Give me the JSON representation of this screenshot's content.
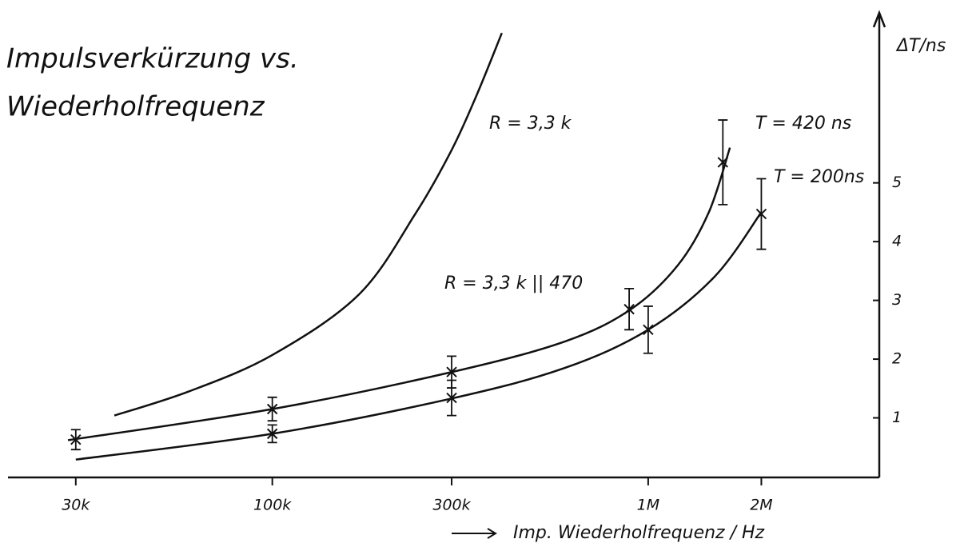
{
  "chart_data": {
    "type": "line",
    "title": [
      "Impulsverkürzung vs.",
      "Wiederholfrequenz"
    ],
    "x_label": "Imp. Wiederholfrequenz / Hz",
    "y_label": "ΔT/ns",
    "xscale": "log",
    "color": "#111",
    "xlim": [
      20000,
      4000000
    ],
    "ylim": [
      0,
      7.5
    ],
    "xticks": [
      {
        "value": 30000,
        "label": "30k"
      },
      {
        "value": 100000,
        "label": "100k"
      },
      {
        "value": 300000,
        "label": "300k"
      },
      {
        "value": 1000000,
        "label": "1M"
      },
      {
        "value": 2000000,
        "label": "2M"
      }
    ],
    "yticks": [
      1,
      2,
      3,
      4,
      5
    ],
    "annotations": [
      "R = 3,3 k",
      "R = 3,3 k || 470"
    ],
    "series": [
      {
        "name": "T = 420 ns",
        "x": [
          30000,
          100000,
          300000,
          890000,
          1580000
        ],
        "values": [
          0.63,
          1.15,
          1.78,
          2.85,
          5.35
        ],
        "errors": [
          0.17,
          0.2,
          0.27,
          0.35,
          0.72
        ]
      },
      {
        "name": "T = 200ns",
        "x": [
          100000,
          300000,
          1000000,
          2000000
        ],
        "values": [
          0.73,
          1.34,
          2.5,
          4.47
        ],
        "errors": [
          0.15,
          0.3,
          0.4,
          0.6
        ]
      }
    ],
    "curves": [
      {
        "x": [
          38000,
          60000,
          100000,
          170000,
          240000,
          300000,
          350000,
          408000
        ],
        "values": [
          1.04,
          1.45,
          2.07,
          3.1,
          4.47,
          5.56,
          6.5,
          7.55
        ]
      },
      {
        "x": [
          28600,
          100000,
          300000,
          600000,
          900000,
          1200000,
          1450000,
          1650000
        ],
        "values": [
          0.62,
          1.15,
          1.78,
          2.3,
          2.85,
          3.6,
          4.5,
          5.6
        ]
      },
      {
        "x": [
          30000,
          100000,
          300000,
          600000,
          1000000,
          1500000,
          2000000
        ],
        "values": [
          0.29,
          0.73,
          1.33,
          1.85,
          2.5,
          3.4,
          4.5
        ]
      }
    ]
  }
}
